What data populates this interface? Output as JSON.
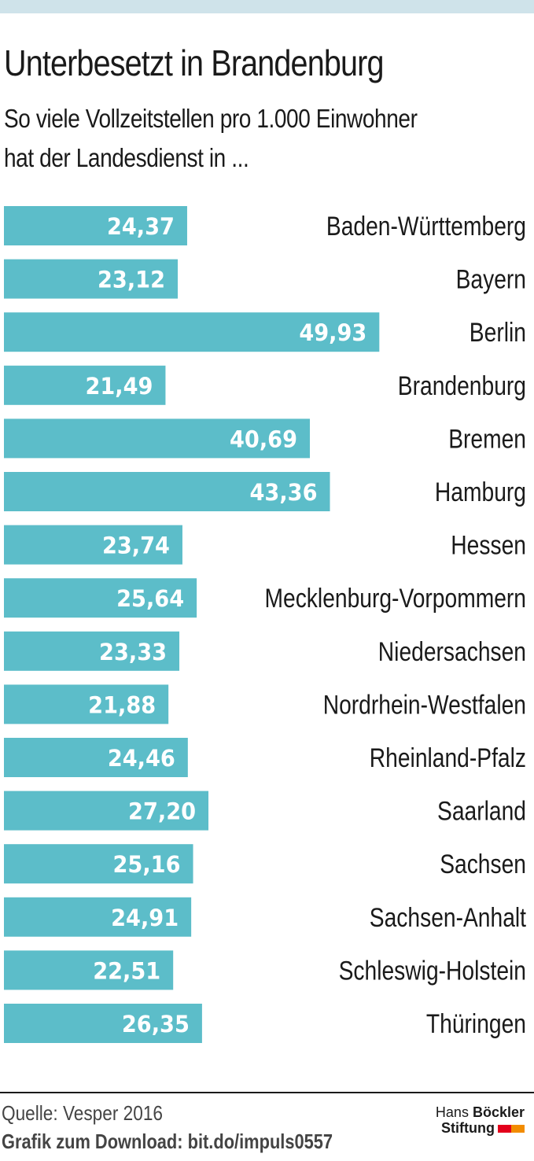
{
  "header": {
    "title": "Unterbesetzt in Brandenburg",
    "subtitle_line1": "So viele Vollzeitstellen pro 1.000 Einwohner",
    "subtitle_line2": "hat der Landesdienst in ..."
  },
  "chart_data": {
    "type": "bar",
    "orientation": "horizontal",
    "title": "Unterbesetzt in Brandenburg",
    "subtitle": "So viele Vollzeitstellen pro 1.000 Einwohner hat der Landesdienst in ...",
    "categories": [
      "Baden-Württemberg",
      "Bayern",
      "Berlin",
      "Brandenburg",
      "Bremen",
      "Hamburg",
      "Hessen",
      "Mecklenburg-Vorpommern",
      "Niedersachsen",
      "Nordrhein-Westfalen",
      "Rheinland-Pfalz",
      "Saarland",
      "Sachsen",
      "Sachsen-Anhalt",
      "Schleswig-Holstein",
      "Thüringen"
    ],
    "values": [
      24.37,
      23.12,
      49.93,
      21.49,
      40.69,
      43.36,
      23.74,
      25.64,
      23.33,
      21.88,
      24.46,
      27.2,
      25.16,
      24.91,
      22.51,
      26.35
    ],
    "value_labels": [
      "24,37",
      "23,12",
      "49,93",
      "21,49",
      "40,69",
      "43,36",
      "23,74",
      "25,64",
      "23,33",
      "21,88",
      "24,46",
      "27,20",
      "25,16",
      "24,91",
      "22,51",
      "26,35"
    ],
    "xlim": [
      0,
      70
    ],
    "xlabel": "",
    "ylabel": "",
    "grid": false,
    "bar_color": "#5cbdc9",
    "label_color": "#ffffff"
  },
  "footer": {
    "source": "Quelle: Vesper 2016",
    "download": "Grafik zum Download: bit.do/impuls0557",
    "logo_line1_a": "Hans ",
    "logo_line1_b": "Böckler",
    "logo_line2": "Stiftung"
  },
  "colors": {
    "top_band": "#cfe3ea",
    "logo_red": "#e3001b",
    "logo_orange": "#f28c00"
  }
}
